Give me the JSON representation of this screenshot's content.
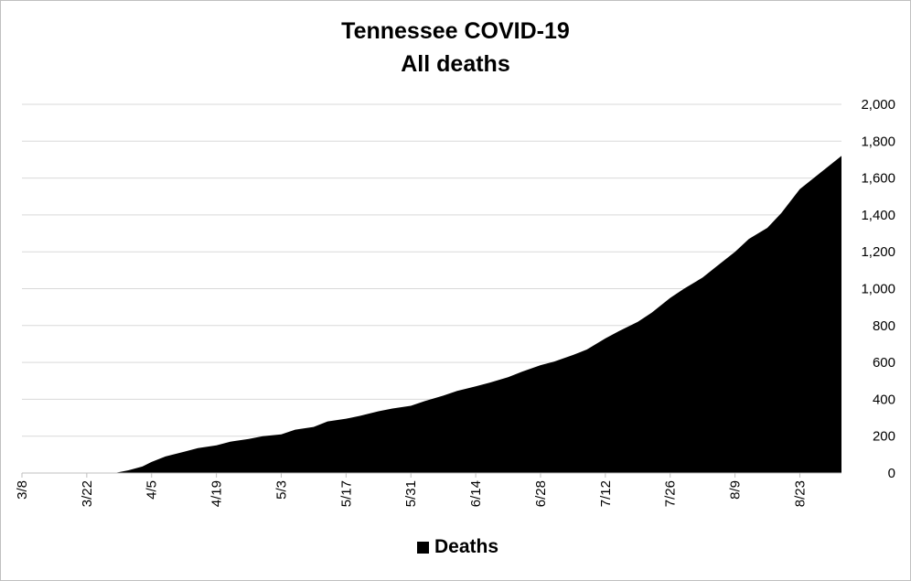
{
  "chart_data": {
    "type": "area",
    "title": "Tennessee COVID-19",
    "subtitle": "All deaths",
    "xlabel": "",
    "ylabel": "",
    "ylim": [
      0,
      2000
    ],
    "yticks": [
      0,
      200,
      400,
      600,
      800,
      1000,
      1200,
      1400,
      1600,
      1800,
      2000
    ],
    "ytick_labels": [
      "0",
      "200",
      "400",
      "600",
      "800",
      "1,000",
      "1,200",
      "1,400",
      "1,600",
      "1,800",
      "2,000"
    ],
    "y_axis_position": "right",
    "xtick_labels": [
      "3/8",
      "3/22",
      "4/5",
      "4/19",
      "5/3",
      "5/17",
      "5/31",
      "6/14",
      "6/28",
      "7/12",
      "7/26",
      "8/9",
      "8/23"
    ],
    "x_start": "3/8",
    "x_end": "9/1",
    "grid": "horizontal",
    "legend_position": "bottom",
    "series": [
      {
        "name": "Deaths",
        "color": "#000000",
        "x": [
          "3/8",
          "3/28",
          "3/31",
          "4/3",
          "4/5",
          "4/8",
          "4/12",
          "4/15",
          "4/19",
          "4/22",
          "4/26",
          "4/29",
          "5/3",
          "5/6",
          "5/10",
          "5/13",
          "5/17",
          "5/20",
          "5/24",
          "5/27",
          "5/31",
          "6/3",
          "6/7",
          "6/10",
          "6/14",
          "6/17",
          "6/21",
          "6/24",
          "6/28",
          "7/1",
          "7/5",
          "7/8",
          "7/12",
          "7/15",
          "7/19",
          "7/22",
          "7/26",
          "7/29",
          "8/2",
          "8/5",
          "8/9",
          "8/12",
          "8/16",
          "8/19",
          "8/23",
          "8/26",
          "8/29",
          "9/1"
        ],
        "values": [
          0,
          0,
          15,
          35,
          60,
          90,
          115,
          135,
          150,
          170,
          185,
          200,
          210,
          235,
          250,
          280,
          295,
          310,
          335,
          350,
          365,
          390,
          420,
          445,
          470,
          490,
          520,
          550,
          585,
          605,
          640,
          670,
          730,
          770,
          820,
          870,
          950,
          1000,
          1060,
          1120,
          1200,
          1270,
          1330,
          1410,
          1540,
          1600,
          1660,
          1720
        ]
      }
    ]
  },
  "legend": {
    "label": "Deaths",
    "color": "#000000"
  },
  "colors": {
    "gridline": "#d9d9d9",
    "area": "#000000",
    "axis": "#bfbfbf"
  }
}
